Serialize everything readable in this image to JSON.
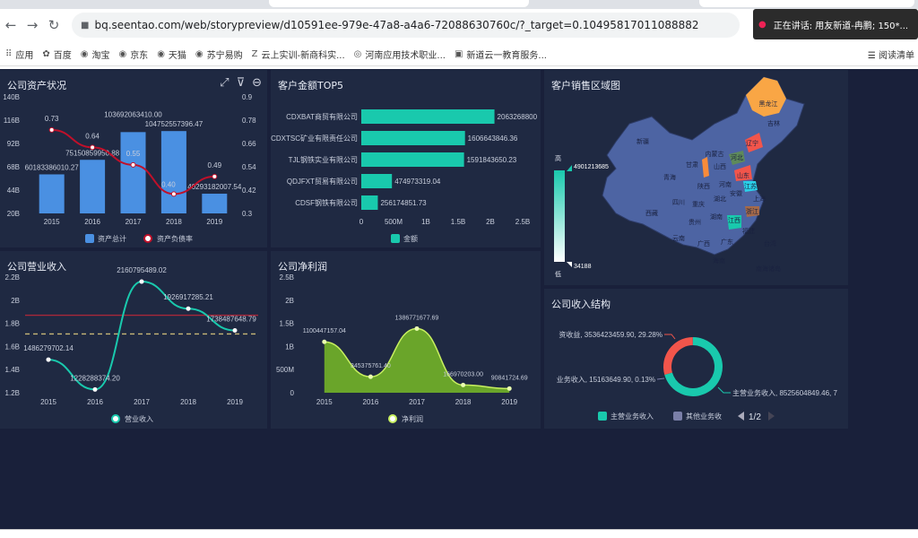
{
  "browser": {
    "url": "bq.seentao.com/web/storypreview/d10591ee-979e-47a8-a4a6-72088630760c/?_target=0.10495817011088882",
    "toast": "正在讲话: 用友新道-冉鹏; 150*...",
    "bookmarks": [
      "应用",
      "百度",
      "淘宝",
      "京东",
      "天猫",
      "苏宁易购",
      "云上实训-新商科实...",
      "河南应用技术职业...",
      "新道云一教育服务..."
    ],
    "reader_mode": "阅读清单"
  },
  "colors": {
    "bar": "#4a90e2",
    "line": "#c0102a",
    "teal": "#19c9ad",
    "green": "#6aa52a",
    "red": "#f2554b",
    "map_base": "#4d64a3"
  },
  "panels": {
    "assets": {
      "title": "公司资产状况"
    },
    "top5": {
      "title": "客户金额TOP5"
    },
    "map": {
      "title": "客户销售区域图",
      "high": "高",
      "low": "低",
      "max": "4901213685",
      "min": "34188",
      "labels": [
        "新疆",
        "西藏",
        "内蒙古",
        "黑龙江",
        "吉林",
        "辽宁",
        "青海",
        "甘肃",
        "山西",
        "河北",
        "山东",
        "陕西",
        "河南",
        "四川",
        "重庆",
        "湖北",
        "安徽",
        "江苏",
        "上海",
        "浙江",
        "湖南",
        "江西",
        "贵州",
        "云南",
        "福建",
        "广西",
        "广东",
        "台湾",
        "海南",
        "南海诸岛"
      ]
    },
    "revenue": {
      "title": "公司营业收入"
    },
    "profit": {
      "title": "公司净利润"
    },
    "structure": {
      "title": "公司收入结构",
      "pager": "1/2"
    }
  },
  "chart_data": [
    {
      "type": "bar",
      "title": "公司资产状况",
      "categories": [
        "2015",
        "2016",
        "2017",
        "2018",
        "2019"
      ],
      "series": [
        {
          "name": "资产总计",
          "type": "bar",
          "values": [
            60183386010.27,
            75150859950.88,
            103692063410.0,
            104752557396.47,
            40293182007.54
          ],
          "labels": [
            "60183386010.27",
            "75150859950.88",
            "103692063410.00",
            "104752557396.47",
            "40293182007.54"
          ]
        },
        {
          "name": "资产负债率",
          "type": "line",
          "axis": "right",
          "values": [
            0.73,
            0.64,
            0.55,
            0.4,
            0.49
          ]
        }
      ],
      "yticks_left": [
        "20B",
        "44B",
        "68B",
        "92B",
        "116B",
        "140B"
      ],
      "ylim_left": [
        20000000000,
        140000000000
      ],
      "yticks_right": [
        "0.3",
        "0.42",
        "0.54",
        "0.66",
        "0.78",
        "0.9"
      ],
      "ylim_right": [
        0.3,
        0.9
      ],
      "legend": "bottom"
    },
    {
      "type": "bar",
      "orientation": "horizontal",
      "title": "客户金额TOP5",
      "categories": [
        "CDXBAT商贸有限公司",
        "CDXTSC矿业有限责任公司",
        "TJL钢铁实业有限公司",
        "QDJFXT贸易有限公司",
        "CDSF钢铁有限公司"
      ],
      "series": [
        {
          "name": "金额",
          "values": [
            2063268800,
            1606643846.36,
            1591843650.23,
            474973319.04,
            256174851.73
          ],
          "labels": [
            "2063268800",
            "1606643846.36",
            "1591843650.23",
            "474973319.04",
            "256174851.73"
          ]
        }
      ],
      "xticks": [
        "0",
        "500M",
        "1B",
        "1.5B",
        "2B",
        "2.5B"
      ],
      "xlim": [
        0,
        2500000000
      ],
      "legend": "bottom"
    },
    {
      "type": "line",
      "title": "公司营业收入",
      "categories": [
        "2015",
        "2016",
        "2017",
        "2018",
        "2019"
      ],
      "series": [
        {
          "name": "营业收入",
          "values": [
            1486279702.14,
            1228288374.2,
            2160795489.02,
            1926917285.21,
            1738487648.79
          ],
          "labels": [
            "1486279702.14",
            "1228288374.20",
            "2160795489.02",
            "1926917285.21",
            "1738487648.79"
          ]
        }
      ],
      "yticks": [
        "1.2B",
        "1.4B",
        "1.6B",
        "1.8B",
        "2B",
        "2.2B"
      ],
      "ylim": [
        1200000000,
        2200000000
      ],
      "reference_lines": [
        {
          "value": 1870000000,
          "style": "solid",
          "color": "#a8283a"
        },
        {
          "value": 1708153699.87,
          "style": "dashed",
          "color": "#c8b878"
        }
      ],
      "legend": "bottom"
    },
    {
      "type": "area",
      "title": "公司净利润",
      "categories": [
        "2015",
        "2016",
        "2017",
        "2018",
        "2019"
      ],
      "series": [
        {
          "name": "净利润",
          "values": [
            1100447157.04,
            345375761.4,
            1386771677.69,
            166970203.0,
            90841724.69
          ],
          "labels": [
            "1100447157.04",
            "345375761.40",
            "1386771677.69",
            "166970203.00",
            "90841724.69"
          ]
        }
      ],
      "yticks": [
        "0",
        "500M",
        "1B",
        "1.5B",
        "2B",
        "2.5B"
      ],
      "ylim": [
        0,
        2500000000
      ],
      "legend": "bottom"
    },
    {
      "type": "pie",
      "donut": true,
      "title": "公司收入结构",
      "slices": [
        {
          "name": "主营业务收入",
          "value": 8525604849.46,
          "label": "主营业务收入, 8525604849.46, 7",
          "color": "#19c9ad"
        },
        {
          "name": "投资收益",
          "value": 3536423459.9,
          "label": "资收益, 3536423459.90, 29.28%",
          "color": "#f2554b"
        },
        {
          "name": "其他业务收入",
          "value": 15163649.9,
          "label": "业务收入, 15163649.90, 0.13%",
          "color": "#7a7fa8"
        }
      ],
      "legend_entries": [
        "主营业务收入",
        "其他业务收"
      ],
      "legend": "bottom"
    }
  ]
}
